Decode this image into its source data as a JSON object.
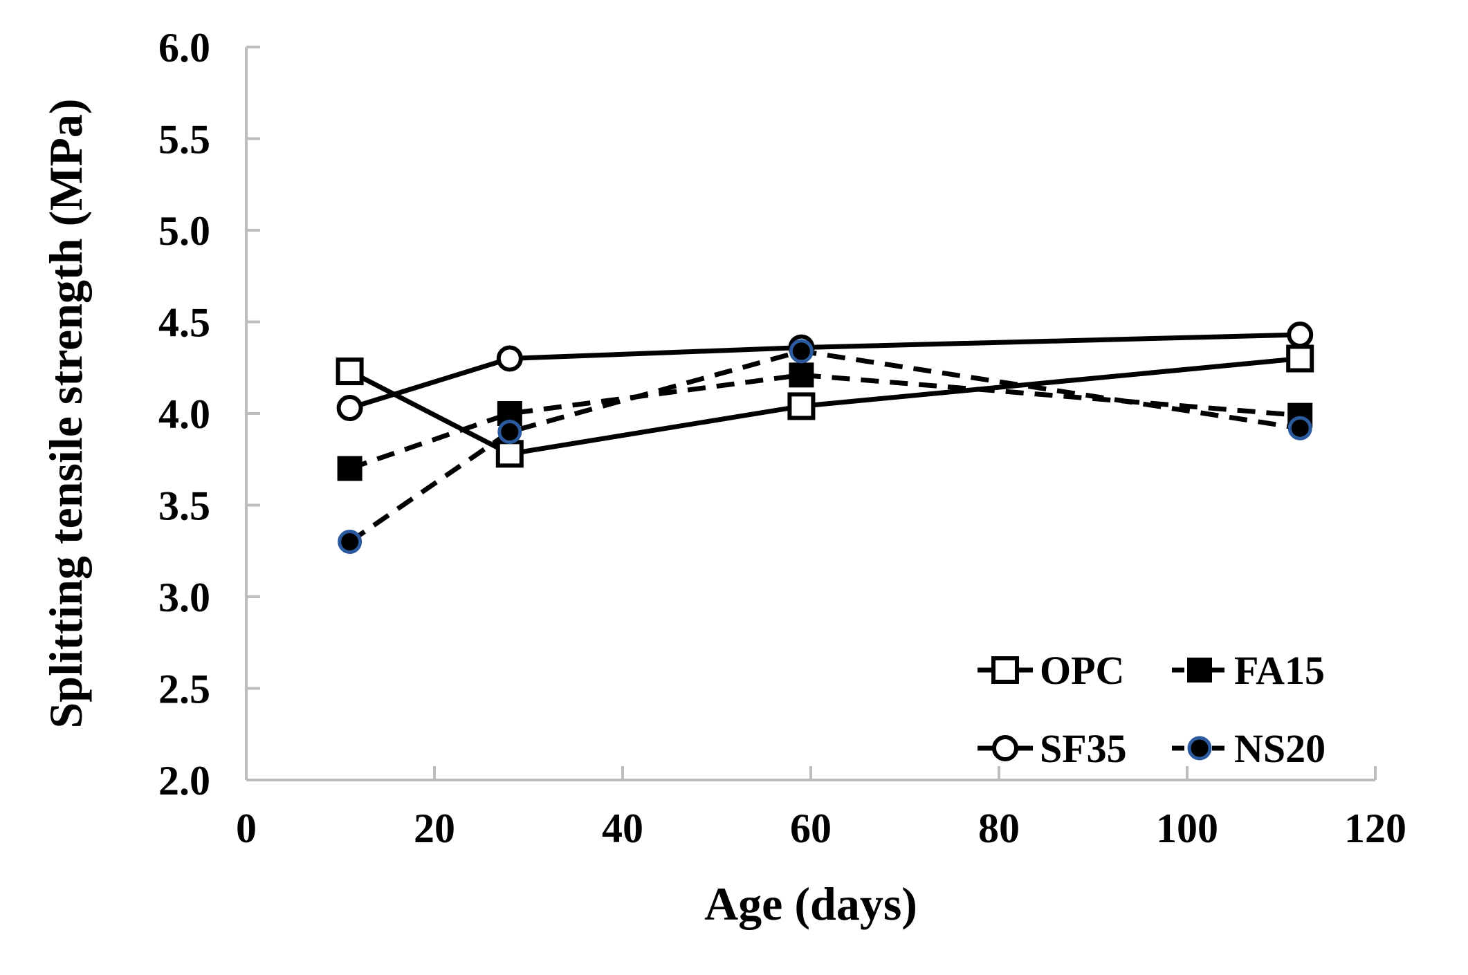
{
  "figure": {
    "background": "#ffffff",
    "axis_color": "#bdbdbd",
    "text_color": "#000000"
  },
  "chart_data": {
    "type": "line",
    "xlabel": "Age (days)",
    "ylabel": "Splitting tensile strength (MPa)",
    "x": [
      11,
      28,
      59,
      112
    ],
    "xlim": [
      0,
      120
    ],
    "ylim": [
      2.0,
      6.0
    ],
    "x_ticks": [
      0,
      20,
      40,
      60,
      80,
      100,
      120
    ],
    "x_tick_labels": [
      "0",
      "20",
      "40",
      "60",
      "80",
      "100",
      "120"
    ],
    "y_ticks": [
      2.0,
      2.5,
      3.0,
      3.5,
      4.0,
      4.5,
      5.0,
      5.5,
      6.0
    ],
    "y_tick_labels": [
      "2.0",
      "2.5",
      "3.0",
      "3.5",
      "4.0",
      "4.5",
      "5.0",
      "5.5",
      "6.0"
    ],
    "grid": false,
    "legend": {
      "position": "inside-lower-right",
      "columns": 2,
      "order": [
        "OPC",
        "FA15",
        "SF35",
        "NS20"
      ]
    },
    "series": [
      {
        "name": "OPC",
        "values": [
          4.23,
          3.78,
          4.04,
          4.3
        ],
        "line": "solid",
        "marker": "open-square",
        "color": "#000000",
        "marker_edge": "#000000"
      },
      {
        "name": "FA15",
        "values": [
          3.7,
          4.0,
          4.21,
          3.99
        ],
        "line": "dashed",
        "marker": "filled-square",
        "color": "#000000",
        "marker_edge": "#000000"
      },
      {
        "name": "SF35",
        "values": [
          4.03,
          4.3,
          4.36,
          4.43
        ],
        "line": "solid",
        "marker": "open-circle",
        "color": "#000000",
        "marker_edge": "#000000"
      },
      {
        "name": "NS20",
        "values": [
          3.3,
          3.9,
          4.34,
          3.92
        ],
        "line": "dashed",
        "marker": "filled-circle",
        "color": "#000000",
        "marker_edge": "#2b5b9e"
      }
    ]
  }
}
